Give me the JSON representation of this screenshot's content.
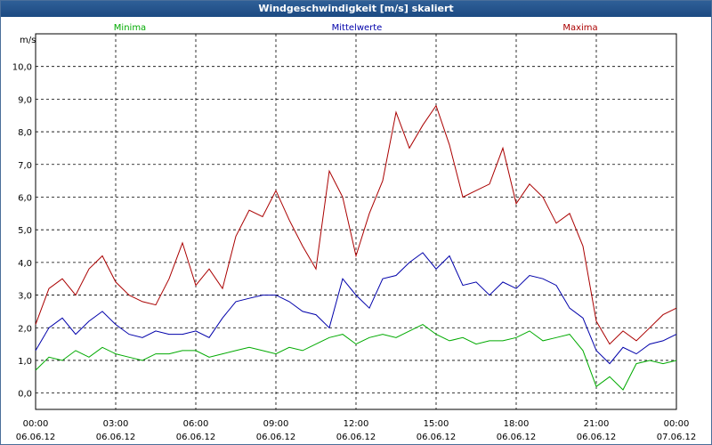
{
  "window": {
    "title": "Windgeschwindigkeit [m/s] skaliert"
  },
  "chart_data": {
    "type": "line",
    "title": "Windgeschwindigkeit [m/s] skaliert",
    "ylabel": "m/s",
    "xlabel": "",
    "ylim": [
      -0.5,
      11.0
    ],
    "xlim_hours": [
      0,
      24
    ],
    "y_ticks": [
      0.0,
      1.0,
      2.0,
      3.0,
      4.0,
      5.0,
      6.0,
      7.0,
      8.0,
      9.0,
      10.0
    ],
    "y_tick_labels": [
      "0,0",
      "1,0",
      "2,0",
      "3,0",
      "4,0",
      "5,0",
      "6,0",
      "7,0",
      "8,0",
      "9,0",
      "10,0"
    ],
    "x_ticks": [
      {
        "hour": 0,
        "time": "00:00",
        "date": "06.06.12"
      },
      {
        "hour": 3,
        "time": "03:00",
        "date": "06.06.12"
      },
      {
        "hour": 6,
        "time": "06:00",
        "date": "06.06.12"
      },
      {
        "hour": 9,
        "time": "09:00",
        "date": "06.06.12"
      },
      {
        "hour": 12,
        "time": "12:00",
        "date": "06.06.12"
      },
      {
        "hour": 15,
        "time": "15:00",
        "date": "06.06.12"
      },
      {
        "hour": 18,
        "time": "18:00",
        "date": "06.06.12"
      },
      {
        "hour": 21,
        "time": "21:00",
        "date": "06.06.12"
      },
      {
        "hour": 24,
        "time": "00:00",
        "date": "07.06.12"
      }
    ],
    "grid": true,
    "legend": [
      "Minima",
      "Mittelwerte",
      "Maxima"
    ],
    "x": [
      0,
      0.5,
      1,
      1.5,
      2,
      2.5,
      3,
      3.5,
      4,
      4.5,
      5,
      5.5,
      6,
      6.5,
      7,
      7.5,
      8,
      8.5,
      9,
      9.5,
      10,
      10.5,
      11,
      11.5,
      12,
      12.5,
      13,
      13.5,
      14,
      14.5,
      15,
      15.5,
      16,
      16.5,
      17,
      17.5,
      18,
      18.5,
      19,
      19.5,
      20,
      20.5,
      21,
      21.5,
      22,
      22.5,
      23,
      23.5,
      24
    ],
    "series": [
      {
        "name": "Minima",
        "color": "#00aa00",
        "values": [
          0.7,
          1.1,
          1.0,
          1.3,
          1.1,
          1.4,
          1.2,
          1.1,
          1.0,
          1.2,
          1.2,
          1.3,
          1.3,
          1.1,
          1.2,
          1.3,
          1.4,
          1.3,
          1.2,
          1.4,
          1.3,
          1.5,
          1.7,
          1.8,
          1.5,
          1.7,
          1.8,
          1.7,
          1.9,
          2.1,
          1.8,
          1.6,
          1.7,
          1.5,
          1.6,
          1.6,
          1.7,
          1.9,
          1.6,
          1.7,
          1.8,
          1.3,
          0.2,
          0.5,
          0.1,
          0.9,
          1.0,
          0.9,
          1.0
        ]
      },
      {
        "name": "Mittelwerte",
        "color": "#0000aa",
        "values": [
          1.3,
          2.0,
          2.3,
          1.8,
          2.2,
          2.5,
          2.1,
          1.8,
          1.7,
          1.9,
          1.8,
          1.8,
          1.9,
          1.7,
          2.3,
          2.8,
          2.9,
          3.0,
          3.0,
          2.8,
          2.5,
          2.4,
          2.0,
          3.5,
          3.0,
          2.6,
          3.5,
          3.6,
          4.0,
          4.3,
          3.8,
          4.2,
          3.3,
          3.4,
          3.0,
          3.4,
          3.2,
          3.6,
          3.5,
          3.3,
          2.6,
          2.3,
          1.3,
          0.9,
          1.4,
          1.2,
          1.5,
          1.6,
          1.8
        ]
      },
      {
        "name": "Maxima",
        "color": "#aa0000",
        "values": [
          2.1,
          3.2,
          3.5,
          3.0,
          3.8,
          4.2,
          3.4,
          3.0,
          2.8,
          2.7,
          3.5,
          4.6,
          3.3,
          3.8,
          3.2,
          4.8,
          5.6,
          5.4,
          6.2,
          5.3,
          4.5,
          3.8,
          6.8,
          6.0,
          4.2,
          5.5,
          6.5,
          8.6,
          7.5,
          8.2,
          8.8,
          7.6,
          6.0,
          6.2,
          6.4,
          7.5,
          5.8,
          6.4,
          6.0,
          5.2,
          5.5,
          4.5,
          2.2,
          1.5,
          1.9,
          1.6,
          2.0,
          2.4,
          2.6
        ]
      }
    ]
  }
}
